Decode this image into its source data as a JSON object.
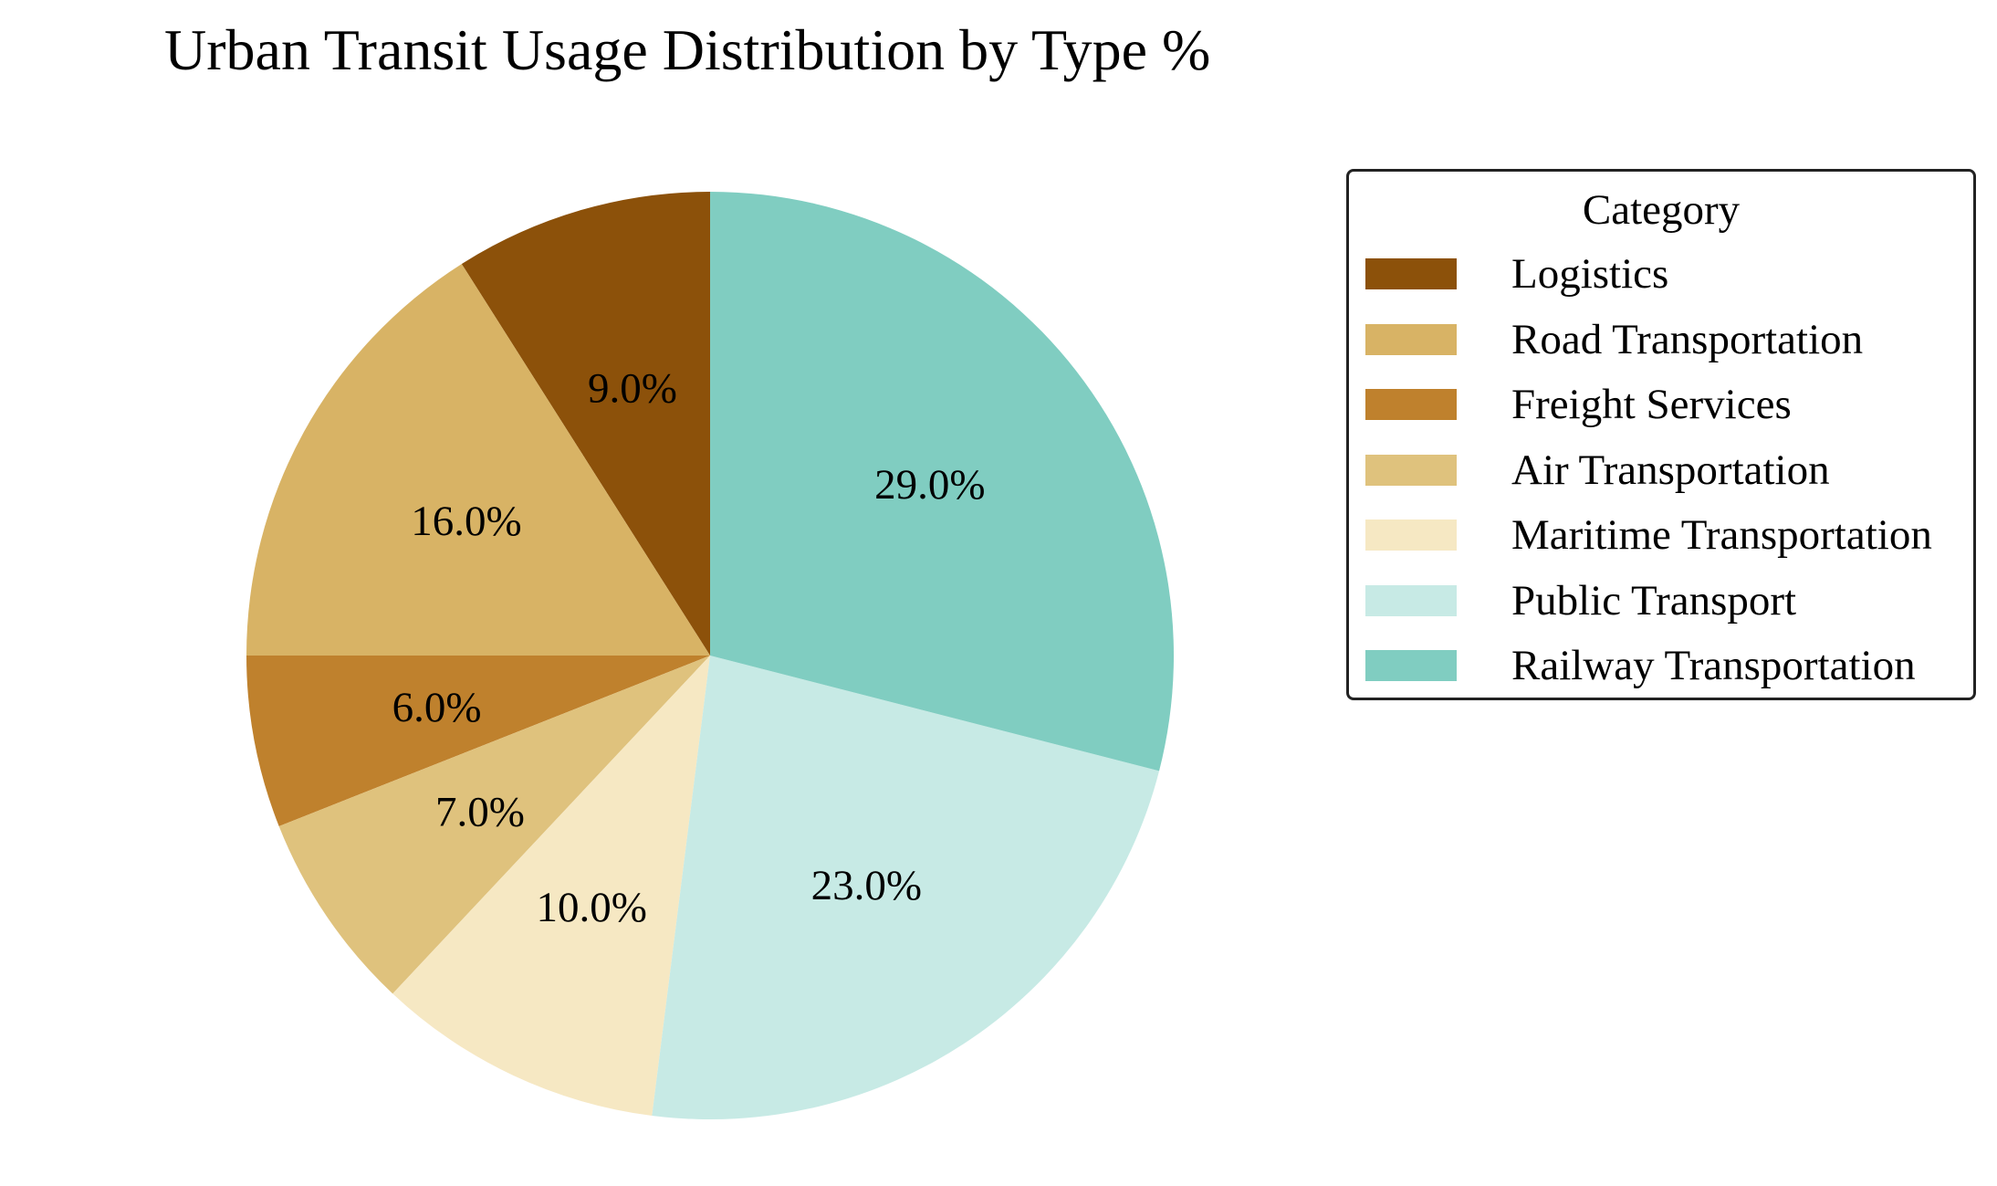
{
  "chart_data": {
    "type": "pie",
    "title": "Urban Transit Usage Distribution by Type %",
    "legend_title": "Category",
    "legend_placement": "right",
    "start_angle": 90,
    "direction": "counterclockwise",
    "categories": [
      "Logistics",
      "Road Transportation",
      "Freight Services",
      "Air Transportation",
      "Maritime Transportation",
      "Public Transport",
      "Railway Transportation"
    ],
    "values": [
      9.0,
      16.0,
      6.0,
      7.0,
      10.0,
      23.0,
      29.0
    ],
    "labels": [
      "9.0%",
      "16.0%",
      "6.0%",
      "7.0%",
      "10.0%",
      "23.0%",
      "29.0%"
    ],
    "colors": [
      "#8c510a",
      "#d8b365",
      "#bf812d",
      "#dfc27d",
      "#f6e8c3",
      "#c7eae5",
      "#80cdc1"
    ]
  }
}
